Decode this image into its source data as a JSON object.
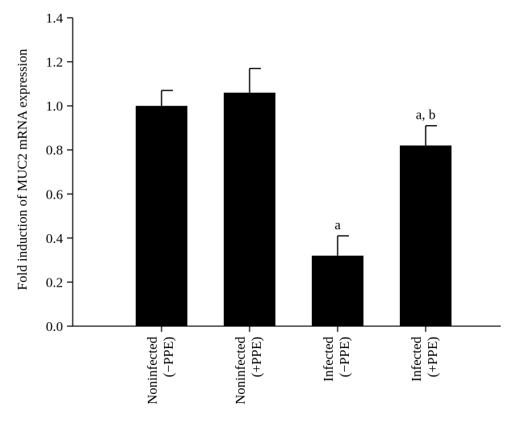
{
  "chart_data": {
    "type": "bar",
    "ylabel": "Fold induction of MUC2 mRNA expression",
    "xlabel": "",
    "ylim": [
      0,
      1.4
    ],
    "yticks": [
      0.0,
      0.2,
      0.4,
      0.6,
      0.8,
      1.0,
      1.2,
      1.4
    ],
    "ytick_labels": [
      "0.0",
      "0.2",
      "0.4",
      "0.6",
      "0.8",
      "1.0",
      "1.2",
      "1.4"
    ],
    "categories": [
      [
        "Noninfected",
        "(−PPE)"
      ],
      [
        "Noninfected",
        "(+PPE)"
      ],
      [
        "Infected",
        "(−PPE)"
      ],
      [
        "Infected",
        "(+PPE)"
      ]
    ],
    "values": [
      1.0,
      1.06,
      0.32,
      0.82
    ],
    "errors": [
      0.07,
      0.11,
      0.09,
      0.09
    ],
    "annotations": [
      "",
      "",
      "a",
      "a, b"
    ],
    "bar_color": "#000000",
    "grid": false
  }
}
